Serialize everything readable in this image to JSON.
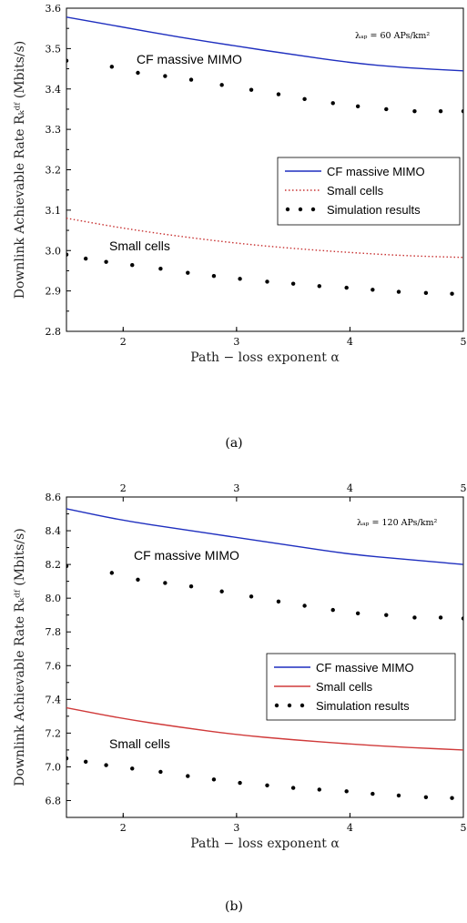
{
  "chart_data": [
    {
      "type": "line",
      "caption": "(a)",
      "xlabel": "Path − loss exponent α",
      "ylabel": "Downlink Achievable Rate Rₖᵈᶠ (Mbits/s)",
      "corner_note": "λₐₚ = 60 APs/km²",
      "xlim": [
        1.5,
        5
      ],
      "ylim": [
        2.8,
        3.6
      ],
      "xticks": [
        2,
        3,
        4,
        5
      ],
      "yticks": [
        2.8,
        2.9,
        3.0,
        3.1,
        3.2,
        3.3,
        3.4,
        3.5,
        3.6
      ],
      "top_axis_ticks": false,
      "annotations": [
        "CF massive MIMO",
        "Small cells"
      ],
      "legend_position": "right",
      "legend": [
        {
          "label": "CF massive MIMO",
          "style": "solid",
          "color": "#1f2fbf"
        },
        {
          "label": "Small cells",
          "style": "dotted",
          "color": "#c83232"
        },
        {
          "label": "Simulation results",
          "style": "markers",
          "color": "#000000"
        }
      ],
      "series": [
        {
          "name": "CF massive MIMO",
          "x": [
            1.5,
            2.0,
            2.5,
            3.0,
            3.5,
            4.0,
            4.5,
            5.0
          ],
          "y": [
            3.578,
            3.553,
            3.528,
            3.506,
            3.485,
            3.465,
            3.452,
            3.445
          ]
        },
        {
          "name": "Small cells",
          "x": [
            1.5,
            2.0,
            2.5,
            3.0,
            3.5,
            4.0,
            4.5,
            5.0
          ],
          "y": [
            3.08,
            3.055,
            3.035,
            3.018,
            3.005,
            2.995,
            2.987,
            2.983
          ]
        },
        {
          "name": "Simulation results",
          "x": [
            1.5,
            1.9,
            2.13,
            2.37,
            2.6,
            2.87,
            3.13,
            3.37,
            3.6,
            3.85,
            4.07,
            4.32,
            4.57,
            4.8,
            5.0
          ],
          "y": [
            3.47,
            3.455,
            3.44,
            3.432,
            3.423,
            3.41,
            3.398,
            3.387,
            3.375,
            3.365,
            3.357,
            3.35,
            3.345,
            3.345,
            3.345
          ]
        },
        {
          "name": "Simulation results",
          "x": [
            1.5,
            1.67,
            1.85,
            2.08,
            2.33,
            2.57,
            2.8,
            3.03,
            3.27,
            3.5,
            3.73,
            3.97,
            4.2,
            4.43,
            4.67,
            4.9
          ],
          "y": [
            2.99,
            2.98,
            2.972,
            2.964,
            2.955,
            2.945,
            2.937,
            2.93,
            2.923,
            2.918,
            2.912,
            2.908,
            2.903,
            2.898,
            2.895,
            2.893
          ]
        }
      ]
    },
    {
      "type": "line",
      "caption": "(b)",
      "xlabel": "Path − loss exponent α",
      "ylabel": "Downlink Achievable Rate Rₖᵈᶠ (Mbits/s)",
      "corner_note": "λₐₚ = 120 APs/km²",
      "xlim": [
        1.5,
        5
      ],
      "ylim": [
        6.7,
        8.6
      ],
      "xticks": [
        2,
        3,
        4,
        5
      ],
      "yticks": [
        6.8,
        7.0,
        7.2,
        7.4,
        7.6,
        7.8,
        8.0,
        8.2,
        8.4,
        8.6
      ],
      "top_axis_ticks": true,
      "annotations": [
        "CF massive MIMO",
        "Small cells"
      ],
      "legend_position": "right",
      "legend": [
        {
          "label": "CF massive MIMO",
          "style": "solid",
          "color": "#1f2fbf"
        },
        {
          "label": "Small cells",
          "style": "solid",
          "color": "#d03a3a"
        },
        {
          "label": "Simulation results",
          "style": "markers",
          "color": "#000000"
        }
      ],
      "series": [
        {
          "name": "CF massive MIMO",
          "x": [
            1.5,
            2.0,
            2.5,
            3.0,
            3.5,
            4.0,
            4.5,
            5.0
          ],
          "y": [
            8.53,
            8.46,
            8.41,
            8.36,
            8.31,
            8.26,
            8.23,
            8.2
          ]
        },
        {
          "name": "Small cells",
          "x": [
            1.5,
            2.0,
            2.5,
            3.0,
            3.5,
            4.0,
            4.5,
            5.0
          ],
          "y": [
            7.35,
            7.285,
            7.235,
            7.19,
            7.16,
            7.135,
            7.115,
            7.1
          ]
        },
        {
          "name": "Simulation results",
          "x": [
            1.5,
            1.9,
            2.13,
            2.37,
            2.6,
            2.87,
            3.13,
            3.37,
            3.6,
            3.85,
            4.07,
            4.32,
            4.57,
            4.8,
            5.0
          ],
          "y": [
            8.19,
            8.15,
            8.11,
            8.09,
            8.07,
            8.04,
            8.01,
            7.98,
            7.955,
            7.93,
            7.91,
            7.9,
            7.885,
            7.885,
            7.88
          ]
        },
        {
          "name": "Simulation results",
          "x": [
            1.5,
            1.67,
            1.85,
            2.08,
            2.33,
            2.57,
            2.8,
            3.03,
            3.27,
            3.5,
            3.73,
            3.97,
            4.2,
            4.43,
            4.67,
            4.9
          ],
          "y": [
            7.05,
            7.03,
            7.01,
            6.99,
            6.97,
            6.945,
            6.925,
            6.905,
            6.89,
            6.875,
            6.865,
            6.855,
            6.84,
            6.83,
            6.82,
            6.815
          ]
        }
      ]
    }
  ]
}
